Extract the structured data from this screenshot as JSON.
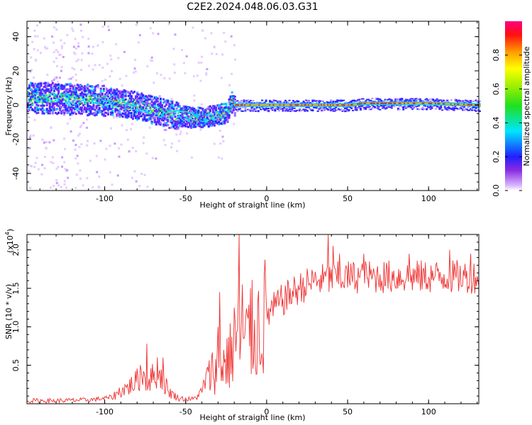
{
  "title": "C2E2.2024.048.06.03.G31",
  "colors": {
    "signal": "#ef3030",
    "background": "#ffffff"
  },
  "chart_data": [
    {
      "type": "heatmap",
      "name": "spectrogram",
      "xlabel": "Height of straight line (km)",
      "ylabel": "Frequency (Hz)",
      "xlim": [
        -148,
        131
      ],
      "ylim": [
        -50,
        49
      ],
      "xticks": [
        -100,
        -50,
        0,
        50,
        100
      ],
      "yticks": [
        -40,
        -20,
        0,
        20,
        40
      ],
      "colorbar": {
        "label": "Normalized spectral amplitude",
        "range": [
          0,
          1
        ],
        "ticks": [
          "0.0",
          "0.2",
          "0.4",
          "0.6",
          "0.8"
        ],
        "colormap": "rainbow"
      },
      "ridge": {
        "x": [
          -148,
          -120,
          -100,
          -80,
          -60,
          -45,
          -35,
          -25,
          -22,
          -20,
          0,
          50,
          60,
          100,
          131
        ],
        "frequency": [
          5,
          4,
          3,
          0,
          -5,
          -7,
          -6,
          -4,
          2,
          0,
          0,
          0,
          1,
          1,
          0
        ]
      }
    },
    {
      "type": "line",
      "name": "snr",
      "xlabel": "Height of straight line (km)",
      "ylabel": "SNR (10 * v/v)",
      "yscale_label": "(x10",
      "yscale_exponent": "4",
      "xlim": [
        -148,
        131
      ],
      "ylim": [
        0,
        2.2
      ],
      "xticks": [
        -100,
        -50,
        0,
        50,
        100
      ],
      "yticks": [
        "0.5",
        "1.0",
        "1.5",
        "2.0"
      ],
      "series": [
        {
          "color": "#ef3030",
          "x": [
            -148,
            -130,
            -110,
            -100,
            -95,
            -90,
            -85,
            -80,
            -77,
            -74,
            -70,
            -67,
            -64,
            -60,
            -55,
            -50,
            -45,
            -42,
            -40,
            -38,
            -35,
            -30,
            -25,
            -20,
            -18,
            -16,
            -14,
            -12,
            -10,
            -5,
            0,
            10,
            20,
            30,
            40,
            50,
            60,
            80,
            100,
            120,
            131
          ],
          "y": [
            0.04,
            0.04,
            0.05,
            0.07,
            0.09,
            0.17,
            0.22,
            0.3,
            0.42,
            0.3,
            0.35,
            0.45,
            0.3,
            0.15,
            0.08,
            0.06,
            0.06,
            0.12,
            0.15,
            0.3,
            0.4,
            0.5,
            0.55,
            0.7,
            0.9,
            0.8,
            0.75,
            0.85,
            0.9,
            1.0,
            1.15,
            1.35,
            1.5,
            1.6,
            1.62,
            1.65,
            1.65,
            1.65,
            1.65,
            1.65,
            1.65
          ],
          "spikes": [
            {
              "x": -74,
              "y": 0.78
            },
            {
              "x": -64,
              "y": 0.6
            },
            {
              "x": -30,
              "y": 1.0
            },
            {
              "x": -29,
              "y": 1.45
            },
            {
              "x": -20,
              "y": 1.25
            },
            {
              "x": -17,
              "y": 2.2
            },
            {
              "x": -15,
              "y": 1.55
            },
            {
              "x": -10,
              "y": 1.5
            },
            {
              "x": 38,
              "y": 2.2
            },
            {
              "x": 41,
              "y": 2.05
            },
            {
              "x": 45,
              "y": 1.95
            },
            {
              "x": 60,
              "y": 1.95
            },
            {
              "x": 88,
              "y": 1.95
            },
            {
              "x": 113,
              "y": 2.0
            },
            {
              "x": 126,
              "y": 1.95
            }
          ]
        }
      ]
    }
  ]
}
